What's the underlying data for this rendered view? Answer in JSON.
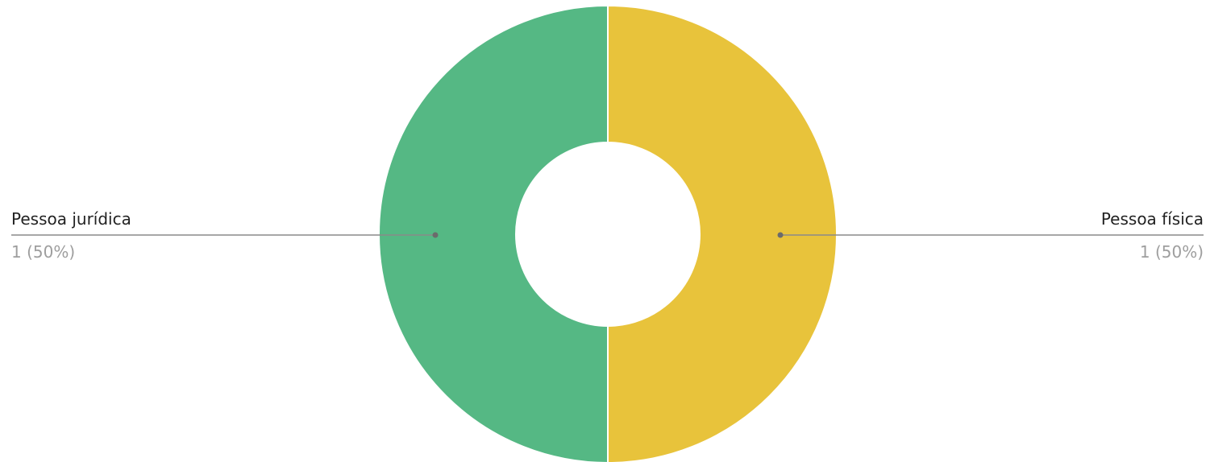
{
  "chart_data": {
    "type": "pie",
    "donut": true,
    "title": "",
    "legend": "none",
    "slices": [
      {
        "label": "Pessoa física",
        "value": 1,
        "value_label": "1 (50%)",
        "color": "#E8C33B",
        "label_side": "right"
      },
      {
        "label": "Pessoa jurídica",
        "value": 1,
        "value_label": "1 (50%)",
        "color": "#55B884",
        "label_side": "left"
      }
    ],
    "leader_line_color": "#8a8a8a"
  }
}
